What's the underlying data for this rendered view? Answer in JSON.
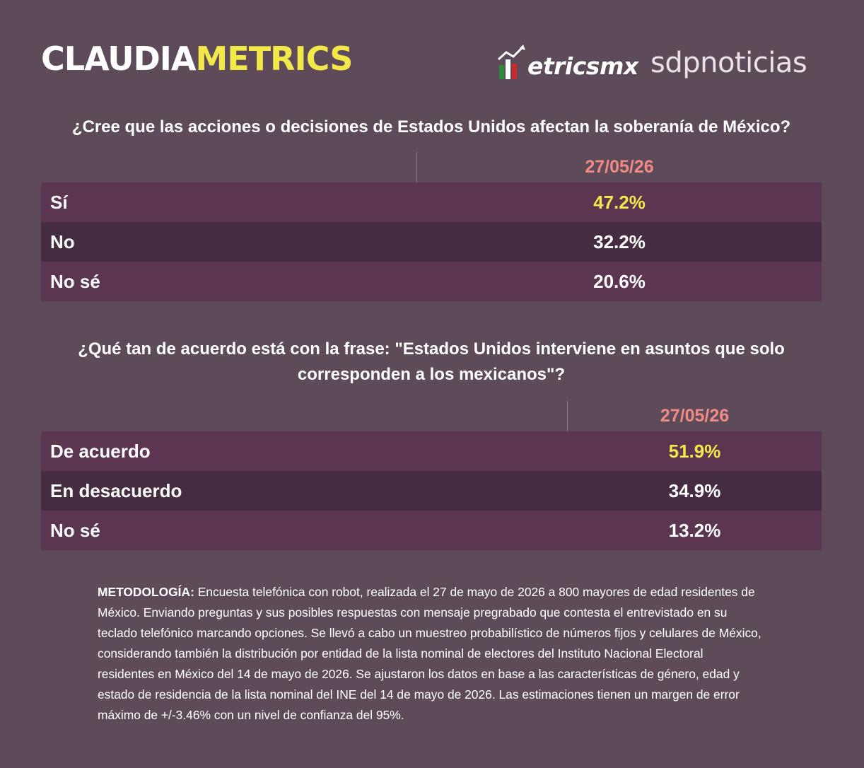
{
  "header": {
    "brand_part1": "CLAUDIA",
    "brand_part2": "METRICS",
    "partner1": "etricsmx",
    "partner1_icon": "chart-arrow-icon",
    "partner2": "sdpnoticias"
  },
  "colors": {
    "background": "#5e4b5a",
    "row_light": "#5c3550",
    "row_dark": "#462c40",
    "date": "#f08a84",
    "highlight": "#f3e84a"
  },
  "survey1": {
    "question": "¿Cree que las acciones o decisiones de Estados Unidos afectan la soberanía de México?",
    "date": "27/05/26",
    "rows": [
      {
        "label": "Sí",
        "value": "47.2%"
      },
      {
        "label": "No",
        "value": "32.2%"
      },
      {
        "label": "No sé",
        "value": "20.6%"
      }
    ]
  },
  "survey2": {
    "question": "¿Qué tan de acuerdo está con la frase: \"Estados Unidos interviene en asuntos que solo corresponden a los mexicanos\"?",
    "date": "27/05/26",
    "rows": [
      {
        "label": "De acuerdo",
        "value": "51.9%"
      },
      {
        "label": "En desacuerdo",
        "value": "34.9%"
      },
      {
        "label": "No sé",
        "value": "13.2%"
      }
    ]
  },
  "methodology": {
    "label": "METODOLOGÍA:",
    "text": " Encuesta telefónica con robot, realizada el 27 de mayo de 2026 a 800 mayores de edad residentes de México. Enviando preguntas y sus posibles respuestas con mensaje pregrabado que contesta el entrevistado en su teclado telefónico marcando opciones. Se llevó a cabo un muestreo probabilístico de números fijos y celulares de México, considerando también la distribución por entidad de la lista nominal de electores del Instituto Nacional Electoral residentes en México del 14 de mayo de 2026. Se ajustaron los datos en base a las características de género, edad y estado de residencia de la lista nominal del INE del 14 de mayo de 2026. Las estimaciones tienen un margen de error máximo de +/-3.46% con un nivel de confianza del 95%."
  }
}
